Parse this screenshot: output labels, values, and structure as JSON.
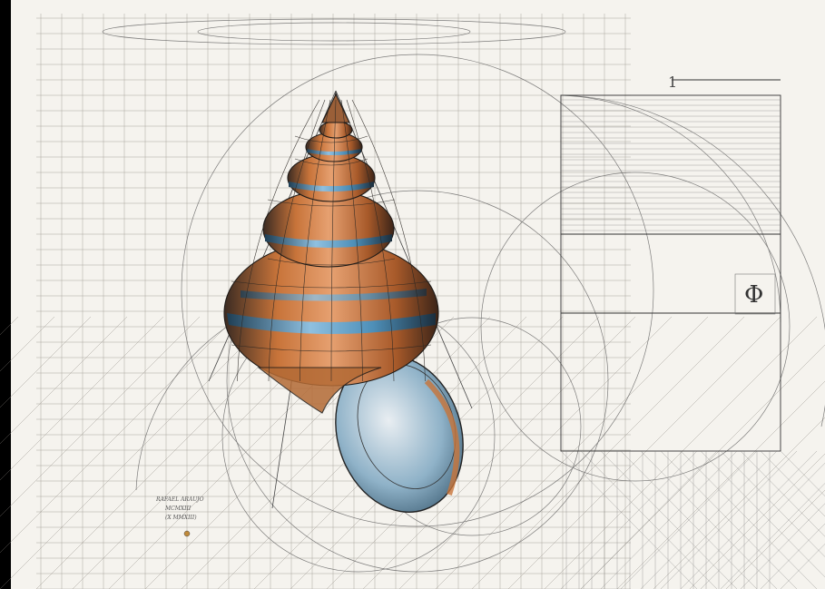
{
  "artwork": {
    "phi_symbol": "Φ",
    "unit_mark": "1",
    "signature": [
      "RAFAEL ARAUJO",
      "MCMXIII",
      "(X MMXIII)"
    ]
  },
  "palette": {
    "paper": "#f5f3ee",
    "ink": "#2a2622",
    "orange": "#c8743a",
    "blue": "#4e8fb8",
    "cream": "#f2e6d6",
    "background": "#000000"
  }
}
